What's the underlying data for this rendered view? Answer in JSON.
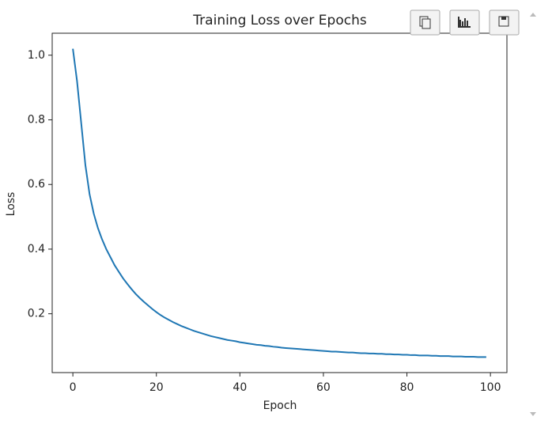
{
  "chart_data": {
    "type": "line",
    "title": "Training Loss over Epochs",
    "x_label": "Epoch",
    "y_label": "Loss",
    "x": [
      0,
      1,
      2,
      3,
      4,
      5,
      6,
      7,
      8,
      9,
      10,
      11,
      12,
      13,
      14,
      15,
      16,
      17,
      18,
      19,
      20,
      21,
      22,
      23,
      24,
      25,
      26,
      27,
      28,
      29,
      30,
      31,
      32,
      33,
      34,
      35,
      36,
      37,
      38,
      39,
      40,
      41,
      42,
      43,
      44,
      45,
      46,
      47,
      48,
      49,
      50,
      51,
      52,
      53,
      54,
      55,
      56,
      57,
      58,
      59,
      60,
      61,
      62,
      63,
      64,
      65,
      66,
      67,
      68,
      69,
      70,
      71,
      72,
      73,
      74,
      75,
      76,
      77,
      78,
      79,
      80,
      81,
      82,
      83,
      84,
      85,
      86,
      87,
      88,
      89,
      90,
      91,
      92,
      93,
      94,
      95,
      96,
      97,
      98,
      99
    ],
    "series": [
      {
        "color": "#1f77b4",
        "values": [
          1.02,
          0.92,
          0.79,
          0.66,
          0.57,
          0.51,
          0.465,
          0.43,
          0.4,
          0.375,
          0.35,
          0.33,
          0.31,
          0.293,
          0.277,
          0.262,
          0.249,
          0.237,
          0.226,
          0.215,
          0.205,
          0.196,
          0.188,
          0.181,
          0.174,
          0.168,
          0.162,
          0.157,
          0.152,
          0.147,
          0.143,
          0.139,
          0.135,
          0.131,
          0.128,
          0.125,
          0.122,
          0.119,
          0.117,
          0.115,
          0.112,
          0.11,
          0.108,
          0.106,
          0.104,
          0.103,
          0.101,
          0.1,
          0.098,
          0.097,
          0.095,
          0.094,
          0.093,
          0.092,
          0.091,
          0.09,
          0.089,
          0.088,
          0.087,
          0.086,
          0.085,
          0.084,
          0.083,
          0.083,
          0.082,
          0.081,
          0.08,
          0.08,
          0.079,
          0.078,
          0.078,
          0.077,
          0.077,
          0.076,
          0.076,
          0.075,
          0.075,
          0.074,
          0.074,
          0.073,
          0.073,
          0.072,
          0.072,
          0.071,
          0.071,
          0.071,
          0.07,
          0.07,
          0.069,
          0.069,
          0.069,
          0.068,
          0.068,
          0.068,
          0.067,
          0.067,
          0.067,
          0.066,
          0.066,
          0.066
        ]
      }
    ],
    "xlim": [
      -4.95,
      103.95
    ],
    "ylim": [
      0.018,
      1.068
    ],
    "xticks": [
      0,
      20,
      40,
      60,
      80,
      100
    ],
    "yticks": [
      0.2,
      0.4,
      0.6,
      0.8,
      {
        "value": 1,
        "label": "1.0"
      }
    ]
  }
}
